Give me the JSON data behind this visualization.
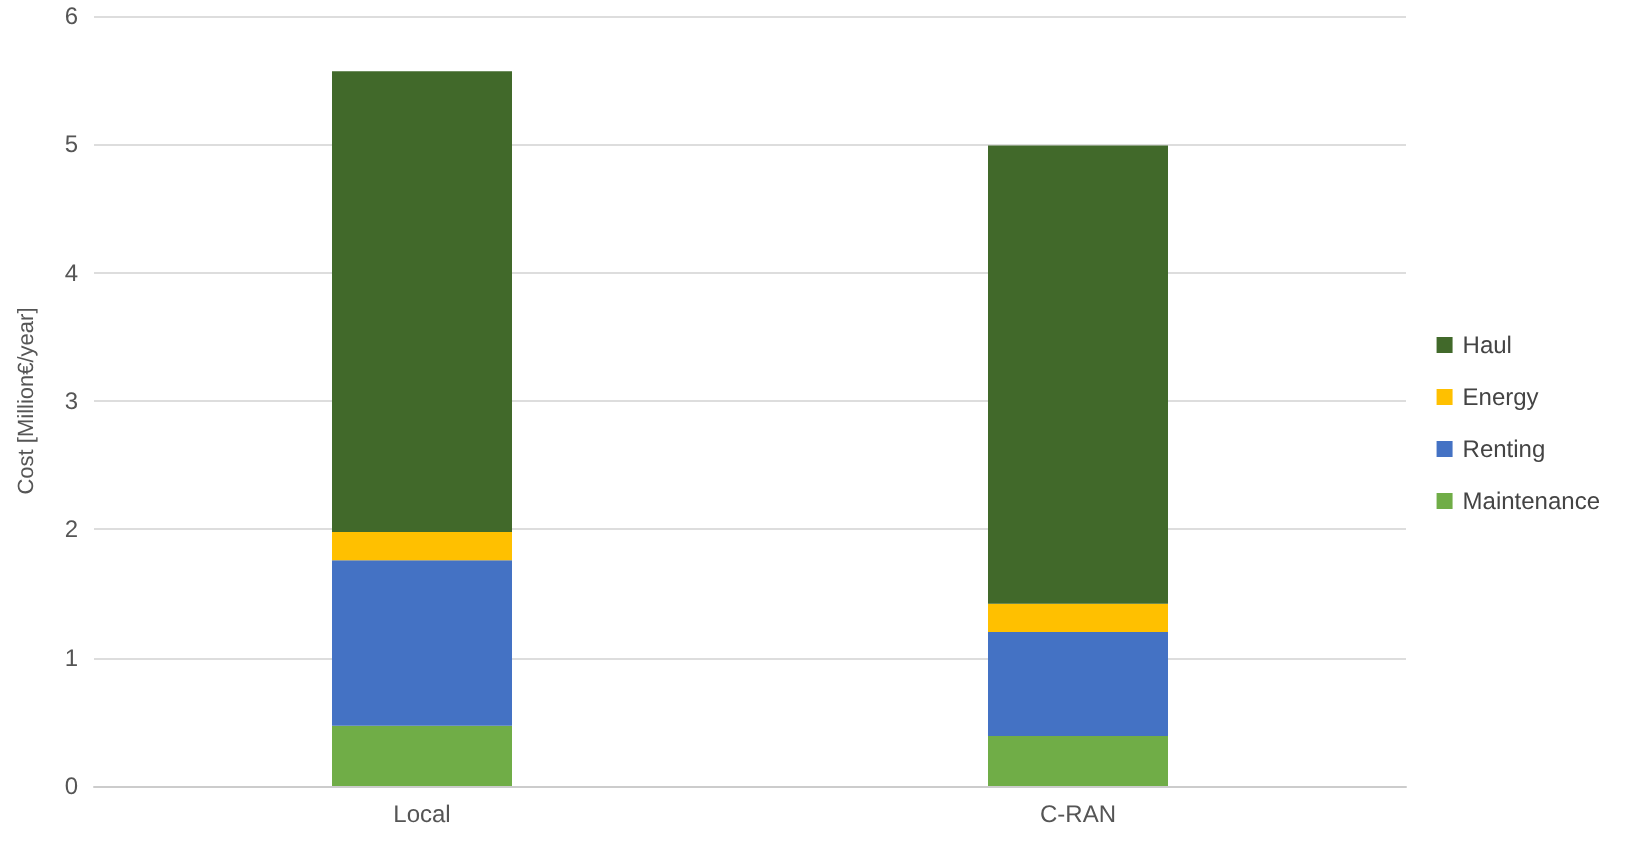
{
  "chart_data": {
    "type": "bar",
    "ylabel": "Cost [Million€/year]",
    "categories": [
      "Local",
      "C-RAN"
    ],
    "series": [
      {
        "name": "Maintenance",
        "color": "#70ad47",
        "values": [
          0.47,
          0.39
        ]
      },
      {
        "name": "Renting",
        "color": "#4472c4",
        "values": [
          1.29,
          0.81
        ]
      },
      {
        "name": "Energy",
        "color": "#ffc000",
        "values": [
          0.22,
          0.22
        ]
      },
      {
        "name": "Haul",
        "color": "#41692a",
        "values": [
          3.59,
          3.57
        ]
      }
    ],
    "stacked": true,
    "ylim": [
      0,
      6
    ],
    "yticks": [
      0,
      1,
      2,
      3,
      4,
      5,
      6
    ],
    "grid": "y",
    "legend": "right"
  }
}
